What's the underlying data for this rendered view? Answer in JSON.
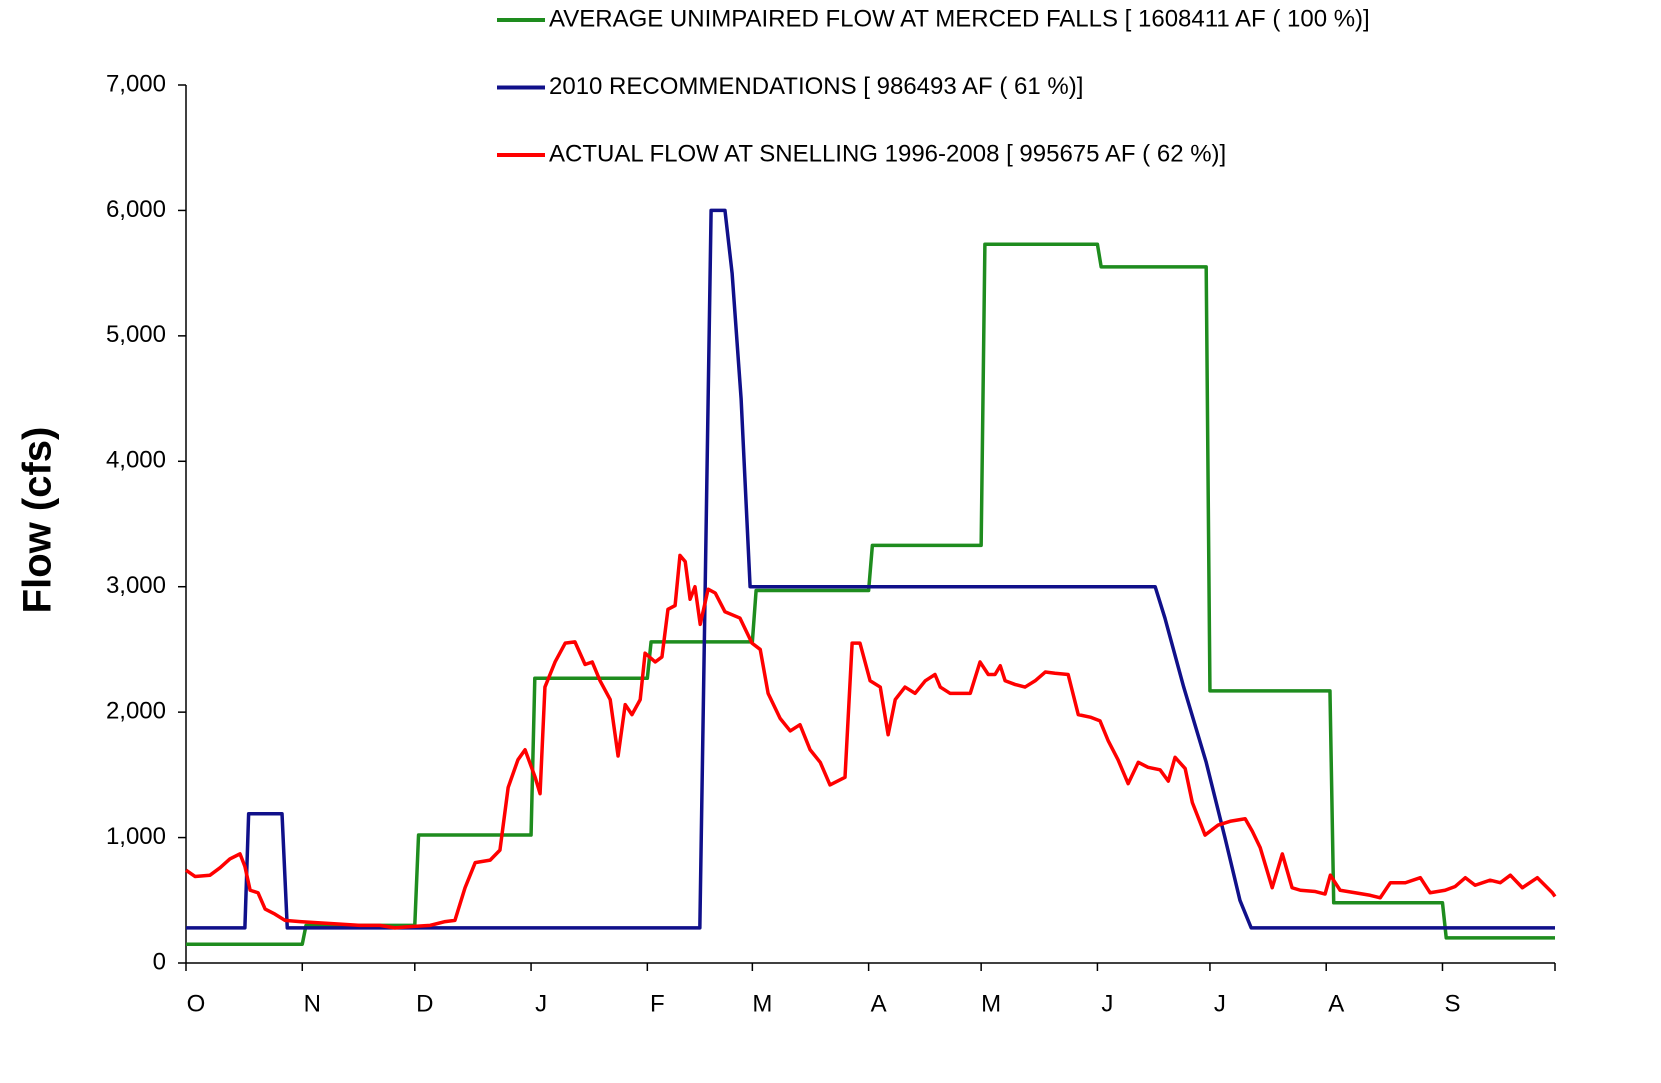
{
  "chart_data": {
    "type": "line",
    "ylabel": "Flow (cfs)",
    "legend": "top-right",
    "xlim": [
      0,
      365
    ],
    "ylim": [
      0,
      7000
    ],
    "xticks": [
      {
        "value": 0,
        "label": "O"
      },
      {
        "value": 31,
        "label": "N"
      },
      {
        "value": 61,
        "label": "D"
      },
      {
        "value": 92,
        "label": "J"
      },
      {
        "value": 123,
        "label": "F"
      },
      {
        "value": 151,
        "label": "M"
      },
      {
        "value": 182,
        "label": "A"
      },
      {
        "value": 212,
        "label": "M"
      },
      {
        "value": 243,
        "label": "J"
      },
      {
        "value": 273,
        "label": "J"
      },
      {
        "value": 304,
        "label": "A"
      },
      {
        "value": 335,
        "label": "S"
      }
    ],
    "yticks": [
      0,
      {
        "value": 1000,
        "label": "1,000"
      },
      {
        "value": 2000,
        "label": "2,000"
      },
      {
        "value": 3000,
        "label": "3,000"
      },
      {
        "value": 4000,
        "label": "4,000"
      },
      {
        "value": 5000,
        "label": "5,000"
      },
      {
        "value": 6000,
        "label": "6,000"
      },
      {
        "value": 7000,
        "label": "7,000"
      }
    ],
    "series": [
      {
        "name": "AVERAGE UNIMPAIRED FLOW AT MERCED FALLS [ 1608411 AF ( 100 %)]",
        "color": "#1e8c1e",
        "x": [
          0,
          31,
          32,
          61,
          62,
          92,
          93,
          123,
          124,
          151,
          152,
          182,
          183,
          212,
          213,
          243,
          244,
          272,
          273,
          305,
          306,
          335,
          336,
          365
        ],
        "values": [
          150,
          150,
          300,
          300,
          1020,
          1020,
          2270,
          2270,
          2560,
          2560,
          2970,
          2970,
          3330,
          3330,
          5730,
          5730,
          5550,
          5550,
          2170,
          2170,
          480,
          480,
          200,
          200
        ]
      },
      {
        "name": "2010 RECOMMENDATIONS [ 986493 AF ( 61 %)]",
        "color": "#10108a",
        "x": [
          0,
          15.7,
          16.7,
          25.6,
          27,
          137,
          140,
          143.7,
          145.6,
          148,
          150.4,
          258.4,
          261,
          266,
          272,
          277,
          281,
          284,
          365
        ],
        "values": [
          280,
          280,
          1190,
          1190,
          280,
          280,
          6000,
          6000,
          5500,
          4500,
          3000,
          3000,
          2750,
          2200,
          1600,
          1000,
          500,
          280,
          280
        ]
      },
      {
        "name": "ACTUAL FLOW AT SNELLING 1996-2008 [ 995675 AF ( 62 %)]",
        "color": "#ff0000",
        "x": [
          0,
          2.4,
          6.4,
          9.1,
          11.7,
          14.4,
          15.7,
          17.1,
          19.2,
          21.1,
          23.7,
          26.4,
          30.4,
          35.7,
          41.1,
          46.4,
          51.7,
          55.7,
          59.7,
          65.1,
          69.1,
          71.7,
          74.4,
          77.1,
          81.1,
          83.7,
          85.9,
          88.5,
          90.4,
          93.1,
          94.4,
          95.7,
          98.4,
          101.1,
          103.7,
          106.4,
          108.3,
          110.4,
          113.1,
          115.2,
          117.1,
          118.9,
          121.1,
          122.4,
          125.1,
          126.9,
          128.5,
          130.4,
          131.7,
          133.1,
          134.4,
          135.7,
          137.1,
          139.2,
          141.1,
          143.7,
          147.7,
          150.9,
          153.1,
          155.2,
          158.4,
          161.1,
          163.7,
          166.4,
          169.1,
          171.7,
          175.7,
          177.6,
          179.7,
          182.4,
          185.1,
          187.2,
          189.1,
          191.7,
          194.4,
          197.1,
          199.7,
          201.1,
          203.7,
          209.1,
          211.7,
          213.9,
          215.7,
          217.1,
          218.4,
          221.1,
          223.7,
          226.4,
          229.1,
          231.7,
          235.2,
          237.9,
          241.1,
          243.7,
          245.9,
          248.5,
          251.2,
          253.9,
          256.5,
          259.7,
          261.9,
          263.7,
          266.4,
          268.3,
          271.7,
          275.2,
          278.4,
          282.4,
          284.3,
          286.4,
          289.6,
          292.3,
          294.9,
          297.1,
          301.1,
          303.7,
          305.1,
          307.7,
          311.7,
          315.7,
          318.4,
          321.1,
          325.1,
          329.1,
          331.7,
          335.7,
          338.4,
          341.1,
          343.7,
          347.7,
          350.4,
          353.1,
          356.3,
          360.3,
          364.3,
          365
        ],
        "values": [
          740,
          690,
          700,
          760,
          830,
          870,
          770,
          580,
          560,
          430,
          390,
          340,
          330,
          320,
          310,
          300,
          300,
          280,
          290,
          300,
          330,
          340,
          600,
          800,
          820,
          900,
          1400,
          1620,
          1700,
          1480,
          1350,
          2200,
          2400,
          2550,
          2560,
          2380,
          2400,
          2250,
          2100,
          1650,
          2060,
          1980,
          2100,
          2470,
          2400,
          2440,
          2820,
          2850,
          3250,
          3200,
          2900,
          3000,
          2700,
          2980,
          2950,
          2800,
          2750,
          2550,
          2500,
          2150,
          1950,
          1850,
          1900,
          1700,
          1600,
          1420,
          1480,
          2550,
          2550,
          2250,
          2200,
          1820,
          2100,
          2200,
          2150,
          2250,
          2300,
          2200,
          2150,
          2150,
          2400,
          2300,
          2300,
          2370,
          2250,
          2220,
          2200,
          2250,
          2320,
          2310,
          2300,
          1980,
          1960,
          1930,
          1770,
          1620,
          1430,
          1600,
          1560,
          1540,
          1450,
          1640,
          1550,
          1280,
          1020,
          1100,
          1130,
          1150,
          1050,
          920,
          600,
          870,
          600,
          580,
          570,
          550,
          700,
          580,
          560,
          540,
          520,
          640,
          640,
          680,
          560,
          580,
          610,
          680,
          620,
          660,
          640,
          700,
          600,
          680,
          560,
          530
        ]
      }
    ]
  }
}
